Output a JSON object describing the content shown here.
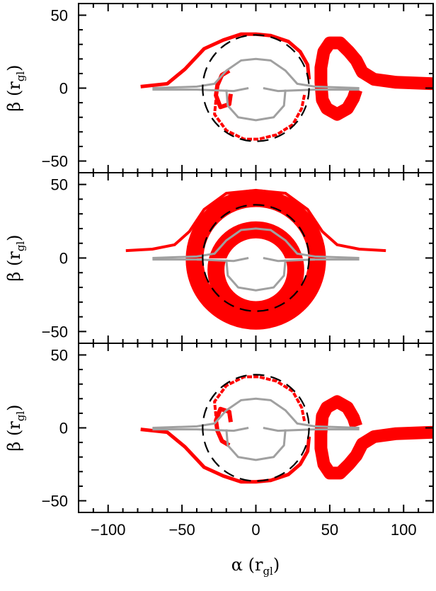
{
  "chart_data": {
    "type": "scatter",
    "xlabel": "α (r_gl)",
    "xlabel_parts": {
      "symbol": "α",
      "sub": "gl"
    },
    "xlim": [
      -120,
      120
    ],
    "xticks": [
      -100,
      -50,
      0,
      50,
      100
    ],
    "xtick_labels": [
      "−100",
      "−50",
      "0",
      "50",
      "100"
    ],
    "ylim": [
      -58,
      58
    ],
    "colors": {
      "emission": "#ff0000",
      "photon_ring": "#a0a0a0",
      "critical_curve": "#000000"
    },
    "critical_curve_radius": 36,
    "panels": [
      {
        "ylabel": "β (r_gl)",
        "ylabel_parts": {
          "symbol": "β",
          "sub": "gl"
        },
        "yticks": [
          50,
          0,
          -50
        ],
        "ytick_labels": [
          "50",
          "0",
          "−50"
        ],
        "emission_mirror": 1,
        "show_xtick_labels": false
      },
      {
        "ylabel": "β (r_gl)",
        "ylabel_parts": {
          "symbol": "β",
          "sub": "gl"
        },
        "yticks": [
          50,
          0,
          -50
        ],
        "ytick_labels": [
          "50",
          "0",
          "−50"
        ],
        "emission_mirror": 0,
        "show_xtick_labels": false
      },
      {
        "ylabel": "β (r_gl)",
        "ylabel_parts": {
          "symbol": "β",
          "sub": "gl"
        },
        "yticks": [
          50,
          0,
          -50
        ],
        "ytick_labels": [
          "50",
          "0",
          "−50"
        ],
        "emission_mirror": -1,
        "show_xtick_labels": true
      }
    ]
  }
}
